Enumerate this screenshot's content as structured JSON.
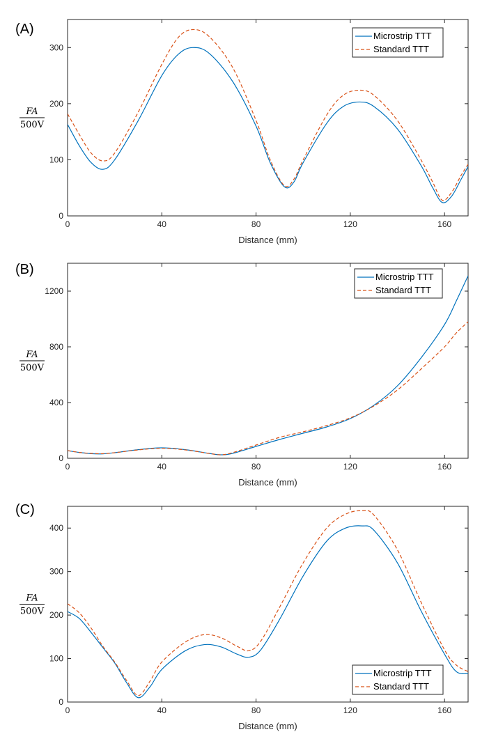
{
  "chart_data": [
    {
      "type": "line",
      "panel_label": "(A)",
      "xlabel": "Distance (mm)",
      "ylabel_num": "FA",
      "ylabel_den": "500V",
      "xlim": [
        0,
        170
      ],
      "ylim": [
        0,
        350
      ],
      "xticks": [
        0,
        40,
        80,
        120,
        160
      ],
      "yticks": [
        0,
        100,
        200,
        300
      ],
      "legend_position": "top-right",
      "series": [
        {
          "name": "Microstrip TTT",
          "color": "#0072BD",
          "style": "solid",
          "x": [
            0,
            5,
            10,
            15,
            20,
            30,
            40,
            47,
            53,
            60,
            70,
            80,
            86,
            92,
            96,
            100,
            110,
            117,
            124,
            130,
            140,
            150,
            155,
            159,
            163,
            167,
            170
          ],
          "y": [
            163,
            125,
            95,
            83,
            100,
            170,
            250,
            288,
            300,
            290,
            240,
            160,
            95,
            52,
            60,
            95,
            165,
            195,
            203,
            195,
            155,
            90,
            50,
            24,
            35,
            65,
            88
          ]
        },
        {
          "name": "Standard TTT",
          "color": "#D95319",
          "style": "dashed",
          "x": [
            0,
            5,
            10,
            15,
            20,
            30,
            40,
            47,
            53,
            60,
            70,
            80,
            86,
            92,
            96,
            100,
            110,
            117,
            124,
            130,
            140,
            150,
            155,
            159,
            163,
            167,
            170
          ],
          "y": [
            182,
            145,
            112,
            98,
            112,
            185,
            270,
            318,
            332,
            320,
            265,
            170,
            100,
            54,
            65,
            100,
            180,
            215,
            224,
            215,
            170,
            100,
            60,
            28,
            42,
            72,
            92
          ]
        }
      ]
    },
    {
      "type": "line",
      "panel_label": "(B)",
      "xlabel": "Distance (mm)",
      "ylabel_num": "FA",
      "ylabel_den": "500V",
      "xlim": [
        0,
        170
      ],
      "ylim": [
        0,
        1400
      ],
      "xticks": [
        0,
        40,
        80,
        120,
        160
      ],
      "yticks": [
        0,
        400,
        800,
        1200
      ],
      "legend_position": "top-right",
      "series": [
        {
          "name": "Microstrip TTT",
          "color": "#0072BD",
          "style": "solid",
          "x": [
            0,
            5,
            10,
            15,
            20,
            30,
            40,
            50,
            60,
            65,
            70,
            80,
            90,
            100,
            110,
            120,
            130,
            140,
            150,
            160,
            165,
            170
          ],
          "y": [
            55,
            42,
            33,
            32,
            40,
            62,
            75,
            62,
            35,
            25,
            35,
            85,
            135,
            180,
            225,
            285,
            380,
            520,
            720,
            960,
            1130,
            1310
          ]
        },
        {
          "name": "Standard TTT",
          "color": "#D95319",
          "style": "dashed",
          "x": [
            0,
            5,
            10,
            15,
            20,
            30,
            40,
            50,
            60,
            65,
            70,
            80,
            90,
            100,
            110,
            120,
            130,
            140,
            150,
            160,
            165,
            170
          ],
          "y": [
            55,
            42,
            35,
            33,
            40,
            60,
            72,
            60,
            35,
            25,
            40,
            95,
            150,
            190,
            235,
            290,
            375,
            490,
            640,
            800,
            900,
            980
          ]
        }
      ]
    },
    {
      "type": "line",
      "panel_label": "(C)",
      "xlabel": "Distance (mm)",
      "ylabel_num": "FA",
      "ylabel_den": "500V",
      "xlim": [
        0,
        170
      ],
      "ylim": [
        0,
        450
      ],
      "xticks": [
        0,
        40,
        80,
        120,
        160
      ],
      "yticks": [
        0,
        100,
        200,
        300,
        400
      ],
      "legend_position": "bottom-right",
      "series": [
        {
          "name": "Microstrip TTT",
          "color": "#0072BD",
          "style": "solid",
          "x": [
            0,
            5,
            10,
            15,
            20,
            25,
            30,
            35,
            40,
            50,
            58,
            65,
            72,
            77,
            82,
            90,
            100,
            110,
            118,
            125,
            130,
            140,
            150,
            160,
            165,
            170
          ],
          "y": [
            208,
            192,
            160,
            125,
            90,
            45,
            10,
            35,
            75,
            118,
            132,
            127,
            110,
            103,
            120,
            190,
            290,
            370,
            400,
            405,
            395,
            320,
            210,
            110,
            70,
            65
          ]
        },
        {
          "name": "Standard TTT",
          "color": "#D95319",
          "style": "dashed",
          "x": [
            0,
            5,
            10,
            15,
            20,
            25,
            30,
            35,
            40,
            50,
            58,
            65,
            72,
            77,
            82,
            90,
            100,
            110,
            118,
            125,
            130,
            140,
            150,
            160,
            165,
            170
          ],
          "y": [
            226,
            205,
            170,
            128,
            92,
            50,
            15,
            48,
            92,
            138,
            155,
            148,
            128,
            118,
            140,
            218,
            320,
            400,
            432,
            440,
            430,
            350,
            230,
            120,
            85,
            70
          ]
        }
      ]
    }
  ]
}
